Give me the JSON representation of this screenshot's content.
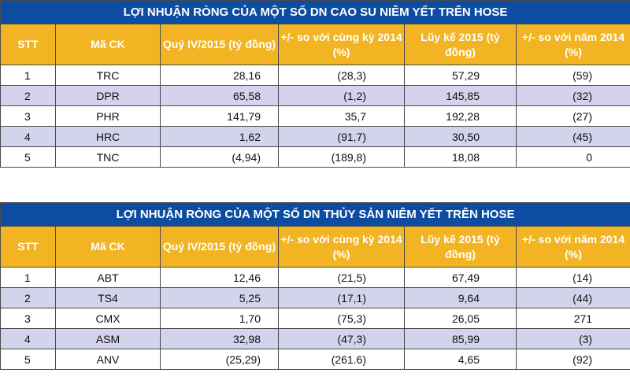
{
  "table_rubber": {
    "title": "LỢI NHUẬN RÒNG CỦA MỘT SỐ DN CAO SU NIÊM YẾT TRÊN HOSE",
    "headers": [
      "STT",
      "Mã CK",
      "Quý IV/2015 (tỷ đồng)",
      "+/- so với cùng kỳ 2014 (%)",
      "Lũy kế 2015 (tỷ đồng)",
      "+/- so với năm 2014 (%)"
    ],
    "rows": [
      [
        "1",
        "TRC",
        "28,16",
        "(28,3)",
        "57,29",
        "(59)"
      ],
      [
        "2",
        "DPR",
        "65,58",
        "(1,2)",
        "145,85",
        "(32)"
      ],
      [
        "3",
        "PHR",
        "141,79",
        "35,7",
        "192,28",
        "(27)"
      ],
      [
        "4",
        "HRC",
        "1,62",
        "(91,7)",
        "30,50",
        "(45)"
      ],
      [
        "5",
        "TNC",
        "(4,94)",
        "(189,8)",
        "18,08",
        "0"
      ]
    ]
  },
  "table_seafood": {
    "title": "LỢI NHUẬN RÒNG CỦA MỘT SỐ DN THỦY SẢN NIÊM YẾT TRÊN HOSE",
    "headers": [
      "STT",
      "Mã CK",
      "Quý IV/2015 (tỷ đồng)",
      "+/- so với cùng kỳ 2014 (%)",
      "Lũy kế 2015 (tỷ đồng)",
      "+/- so với  năm 2014 (%)"
    ],
    "rows": [
      [
        "1",
        "ABT",
        "12,46",
        "(21,5)",
        "67,49",
        "(14)"
      ],
      [
        "2",
        "TS4",
        "5,25",
        "(17,1)",
        "9,64",
        "(44)"
      ],
      [
        "3",
        "CMX",
        "1,70",
        "(75,3)",
        "26,05",
        "271"
      ],
      [
        "4",
        "ASM",
        "32,98",
        "(47,3)",
        "85,99",
        "(3)"
      ],
      [
        "5",
        "ANV",
        "(25,29)",
        "(261.6)",
        "4,65",
        "(92)"
      ]
    ]
  },
  "colors": {
    "title_bg": "#0c4da2",
    "header_bg": "#f2b423",
    "alt_row_bg": "#d3d3ec"
  }
}
